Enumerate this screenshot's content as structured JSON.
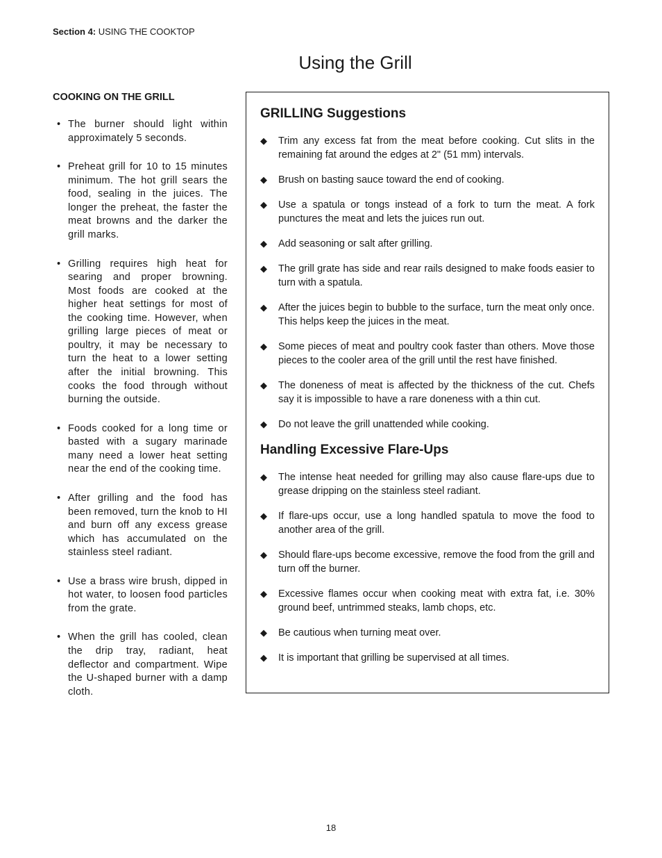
{
  "header": {
    "section_label": "Section 4:",
    "section_title": "USING THE COOKTOP"
  },
  "page_title": "Using the Grill",
  "left": {
    "heading": "COOKING ON THE GRILL",
    "items": [
      "The burner should light within approximately 5 seconds.",
      "Preheat grill for 10 to 15 minutes minimum. The hot grill sears the food, sealing in the juices. The longer the preheat, the faster the meat browns and the darker the grill marks.",
      "Grilling requires high heat for searing and proper browning. Most foods are cooked at the higher heat settings for most of the cooking time. However, when grilling large pieces of meat or poultry, it may be necessary to turn the heat to a lower setting after the initial browning. This cooks the food through without burning the outside.",
      "Foods cooked for a long time or basted with a sugary marinade many need a lower heat setting near the end of the cooking time.",
      "After grilling and the food has been removed, turn the knob to HI and burn off any excess grease which has accumulated on the stainless steel radiant.",
      "Use a brass wire brush, dipped in hot water, to loosen food particles from the grate.",
      "When the grill has cooled, clean the drip tray, radiant, heat deflector and compartment. Wipe the U-shaped burner with a damp cloth."
    ]
  },
  "box": {
    "heading1": "GRILLING Suggestions",
    "list1": [
      "Trim any excess fat from the meat before cooking. Cut slits in the remaining fat around the edges at 2\" (51 mm) intervals.",
      "Brush on basting sauce toward the end of cooking.",
      "Use a spatula or tongs instead of a fork to turn the meat. A fork punctures the meat and lets the juices run out.",
      "Add seasoning or salt after grilling.",
      "The grill grate has side and rear rails designed to make foods easier to turn with a spatula.",
      "After the juices begin to bubble to the surface, turn the meat only once. This helps keep the juices in the meat.",
      "Some pieces of meat and poultry cook faster than others. Move those pieces to the cooler area of the grill until the rest have finished.",
      "The doneness of meat is affected by the thickness of the cut. Chefs say it is impossible to have a rare doneness with a thin cut.",
      "Do not leave the grill unattended while cooking."
    ],
    "heading2": "Handling Excessive Flare-Ups",
    "list2": [
      "The intense heat needed for grilling may also cause flare-ups due to grease dripping on the stainless steel radiant.",
      "If flare-ups occur, use a long handled spatula to move the food to another area of the grill.",
      "Should flare-ups become excessive, remove the food from the grill and turn off the burner.",
      "Excessive flames occur when cooking meat with extra fat, i.e. 30% ground beef, untrimmed steaks, lamb chops, etc.",
      "Be cautious when turning meat over.",
      "It is important that grilling be supervised at all times."
    ]
  },
  "page_number": "18",
  "colors": {
    "text": "#1a1a1a",
    "background": "#ffffff",
    "border": "#1a1a1a"
  },
  "typography": {
    "body_font": "Arial, Helvetica, sans-serif",
    "title_size_pt": 26,
    "box_heading_size_pt": 19,
    "left_heading_size_pt": 14.5,
    "body_size_pt": 14.5,
    "header_size_pt": 13
  }
}
